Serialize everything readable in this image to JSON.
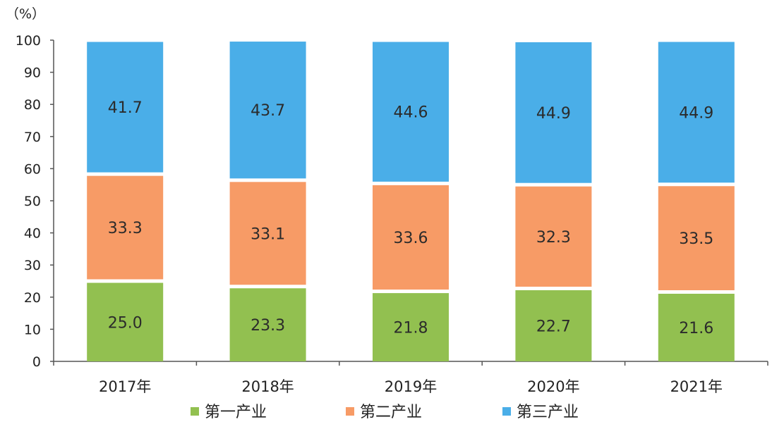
{
  "chart_data": {
    "type": "bar",
    "stacked": true,
    "unit": "（%）",
    "categories": [
      "2017年",
      "2018年",
      "2019年",
      "2020年",
      "2021年"
    ],
    "series": [
      {
        "name": "第一产业",
        "color": "#92c050",
        "values": [
          25.0,
          23.3,
          21.8,
          22.7,
          21.6
        ]
      },
      {
        "name": "第二产业",
        "color": "#f79b66",
        "values": [
          33.3,
          33.1,
          33.6,
          32.3,
          33.5
        ]
      },
      {
        "name": "第三产业",
        "color": "#4aaee8",
        "values": [
          41.7,
          43.7,
          44.6,
          44.9,
          44.9
        ]
      }
    ],
    "ylim": [
      0,
      100
    ],
    "yticks": [
      0,
      10,
      20,
      30,
      40,
      50,
      60,
      70,
      80,
      90,
      100
    ],
    "grid": false,
    "legend_position": "bottom"
  }
}
